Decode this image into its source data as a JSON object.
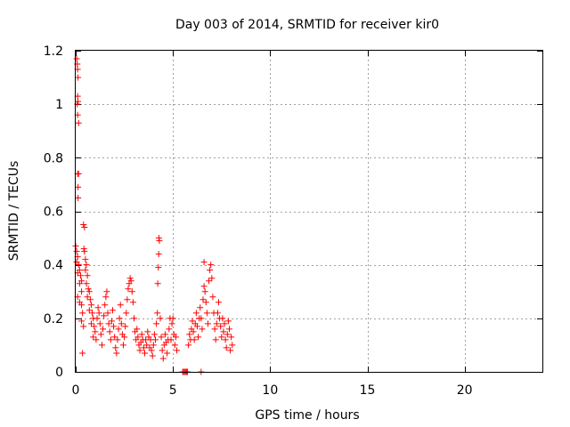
{
  "chart_data": {
    "type": "scatter",
    "title": "Day 003 of 2014, SRMTID for receiver kir0",
    "xlabel": "GPS time / hours",
    "ylabel": "SRMTID / TECUs",
    "xlim": [
      0,
      24
    ],
    "ylim": [
      0,
      1.2
    ],
    "grid": true,
    "marker": "+",
    "x_ticks": [
      0,
      5,
      10,
      15,
      20
    ],
    "x_tick_labels": [
      "0",
      "5",
      "10",
      "15",
      "20"
    ],
    "y_ticks": [
      0,
      0.2,
      0.4,
      0.6,
      0.8,
      1.0,
      1.2
    ],
    "y_tick_labels": [
      "0",
      "0.2",
      "0.4",
      "0.6",
      "0.8",
      "1",
      "1.2"
    ],
    "series": [
      {
        "name": "kir0",
        "color": "#ff0000",
        "points": [
          [
            0.05,
            1.17
          ],
          [
            0.08,
            1.15
          ],
          [
            0.1,
            1.13
          ],
          [
            0.12,
            1.1
          ],
          [
            0.1,
            1.03
          ],
          [
            0.12,
            1.01
          ],
          [
            0.08,
            1.0
          ],
          [
            0.1,
            0.96
          ],
          [
            0.15,
            0.93
          ],
          [
            0.1,
            0.74
          ],
          [
            0.15,
            0.74
          ],
          [
            0.12,
            0.69
          ],
          [
            0.12,
            0.65
          ],
          [
            0.0,
            0.47
          ],
          [
            0.05,
            0.45
          ],
          [
            0.1,
            0.43
          ],
          [
            0.05,
            0.41
          ],
          [
            0.15,
            0.4
          ],
          [
            0.2,
            0.38
          ],
          [
            0.1,
            0.37
          ],
          [
            0.25,
            0.36
          ],
          [
            0.3,
            0.34
          ],
          [
            0.2,
            0.33
          ],
          [
            0.3,
            0.3
          ],
          [
            0.1,
            0.28
          ],
          [
            0.2,
            0.26
          ],
          [
            0.3,
            0.25
          ],
          [
            0.35,
            0.22
          ],
          [
            0.3,
            0.19
          ],
          [
            0.4,
            0.17
          ],
          [
            0.35,
            0.07
          ],
          [
            0.4,
            0.55
          ],
          [
            0.45,
            0.54
          ],
          [
            0.42,
            0.46
          ],
          [
            0.45,
            0.45
          ],
          [
            0.5,
            0.42
          ],
          [
            0.55,
            0.4
          ],
          [
            0.5,
            0.38
          ],
          [
            0.6,
            0.36
          ],
          [
            0.55,
            0.33
          ],
          [
            0.65,
            0.31
          ],
          [
            0.7,
            0.3
          ],
          [
            0.6,
            0.28
          ],
          [
            0.75,
            0.27
          ],
          [
            0.8,
            0.25
          ],
          [
            0.7,
            0.23
          ],
          [
            0.85,
            0.22
          ],
          [
            0.9,
            0.2
          ],
          [
            0.8,
            0.18
          ],
          [
            0.95,
            0.17
          ],
          [
            1.0,
            0.15
          ],
          [
            0.9,
            0.13
          ],
          [
            1.05,
            0.12
          ],
          [
            1.1,
            0.2
          ],
          [
            1.15,
            0.24
          ],
          [
            1.2,
            0.22
          ],
          [
            1.25,
            0.18
          ],
          [
            1.3,
            0.14
          ],
          [
            1.35,
            0.1
          ],
          [
            1.4,
            0.16
          ],
          [
            1.45,
            0.21
          ],
          [
            1.5,
            0.25
          ],
          [
            1.55,
            0.28
          ],
          [
            1.6,
            0.3
          ],
          [
            1.65,
            0.22
          ],
          [
            1.7,
            0.18
          ],
          [
            1.75,
            0.15
          ],
          [
            1.8,
            0.12
          ],
          [
            1.85,
            0.19
          ],
          [
            1.9,
            0.23
          ],
          [
            1.95,
            0.17
          ],
          [
            2.0,
            0.13
          ],
          [
            2.05,
            0.09
          ],
          [
            2.1,
            0.07
          ],
          [
            2.15,
            0.12
          ],
          [
            2.2,
            0.16
          ],
          [
            2.25,
            0.2
          ],
          [
            2.3,
            0.25
          ],
          [
            2.35,
            0.18
          ],
          [
            2.4,
            0.14
          ],
          [
            2.45,
            0.1
          ],
          [
            2.5,
            0.13
          ],
          [
            2.55,
            0.17
          ],
          [
            2.6,
            0.22
          ],
          [
            2.65,
            0.27
          ],
          [
            2.7,
            0.31
          ],
          [
            2.75,
            0.33
          ],
          [
            2.8,
            0.35
          ],
          [
            2.85,
            0.34
          ],
          [
            2.9,
            0.3
          ],
          [
            2.95,
            0.26
          ],
          [
            3.0,
            0.2
          ],
          [
            3.05,
            0.15
          ],
          [
            3.1,
            0.12
          ],
          [
            3.15,
            0.16
          ],
          [
            3.2,
            0.13
          ],
          [
            3.25,
            0.1
          ],
          [
            3.3,
            0.08
          ],
          [
            3.35,
            0.11
          ],
          [
            3.4,
            0.14
          ],
          [
            3.45,
            0.12
          ],
          [
            3.5,
            0.09
          ],
          [
            3.55,
            0.07
          ],
          [
            3.6,
            0.12
          ],
          [
            3.65,
            0.1
          ],
          [
            3.7,
            0.15
          ],
          [
            3.75,
            0.13
          ],
          [
            3.8,
            0.09
          ],
          [
            3.85,
            0.12
          ],
          [
            3.9,
            0.08
          ],
          [
            3.95,
            0.06
          ],
          [
            4.0,
            0.1
          ],
          [
            4.05,
            0.14
          ],
          [
            4.1,
            0.12
          ],
          [
            4.15,
            0.18
          ],
          [
            4.2,
            0.22
          ],
          [
            4.22,
            0.33
          ],
          [
            4.25,
            0.39
          ],
          [
            4.27,
            0.44
          ],
          [
            4.3,
            0.49
          ],
          [
            4.28,
            0.5
          ],
          [
            4.35,
            0.2
          ],
          [
            4.4,
            0.13
          ],
          [
            4.45,
            0.08
          ],
          [
            4.5,
            0.05
          ],
          [
            4.55,
            0.1
          ],
          [
            4.6,
            0.14
          ],
          [
            4.65,
            0.11
          ],
          [
            4.7,
            0.07
          ],
          [
            4.75,
            0.12
          ],
          [
            4.8,
            0.16
          ],
          [
            4.85,
            0.2
          ],
          [
            4.9,
            0.12
          ],
          [
            4.95,
            0.18
          ],
          [
            5.0,
            0.2
          ],
          [
            5.05,
            0.14
          ],
          [
            5.1,
            0.1
          ],
          [
            5.15,
            0.13
          ],
          [
            5.2,
            0.08
          ],
          [
            5.5,
            0.0
          ],
          [
            5.55,
            0.0
          ],
          [
            5.6,
            0.0
          ],
          [
            5.65,
            0.0
          ],
          [
            5.7,
            0.0
          ],
          [
            5.75,
            0.0
          ],
          [
            6.45,
            0.0
          ],
          [
            5.8,
            0.1
          ],
          [
            5.85,
            0.14
          ],
          [
            5.9,
            0.12
          ],
          [
            5.95,
            0.16
          ],
          [
            6.0,
            0.19
          ],
          [
            6.05,
            0.15
          ],
          [
            6.1,
            0.12
          ],
          [
            6.15,
            0.18
          ],
          [
            6.2,
            0.22
          ],
          [
            6.25,
            0.17
          ],
          [
            6.3,
            0.13
          ],
          [
            6.35,
            0.2
          ],
          [
            6.4,
            0.24
          ],
          [
            6.45,
            0.2
          ],
          [
            6.5,
            0.16
          ],
          [
            6.55,
            0.27
          ],
          [
            6.6,
            0.32
          ],
          [
            6.65,
            0.3
          ],
          [
            6.7,
            0.26
          ],
          [
            6.75,
            0.22
          ],
          [
            6.8,
            0.18
          ],
          [
            6.85,
            0.34
          ],
          [
            6.9,
            0.38
          ],
          [
            6.95,
            0.4
          ],
          [
            7.0,
            0.35
          ],
          [
            7.05,
            0.28
          ],
          [
            7.1,
            0.22
          ],
          [
            7.15,
            0.16
          ],
          [
            7.2,
            0.12
          ],
          [
            7.25,
            0.18
          ],
          [
            7.3,
            0.22
          ],
          [
            7.35,
            0.26
          ],
          [
            7.4,
            0.2
          ],
          [
            7.45,
            0.17
          ],
          [
            7.5,
            0.13
          ],
          [
            7.55,
            0.2
          ],
          [
            7.6,
            0.15
          ],
          [
            7.65,
            0.18
          ],
          [
            7.7,
            0.12
          ],
          [
            7.75,
            0.09
          ],
          [
            7.8,
            0.14
          ],
          [
            7.85,
            0.19
          ],
          [
            7.9,
            0.16
          ],
          [
            7.95,
            0.08
          ],
          [
            8.0,
            0.13
          ],
          [
            8.05,
            0.1
          ],
          [
            6.6,
            0.41
          ]
        ]
      }
    ]
  }
}
